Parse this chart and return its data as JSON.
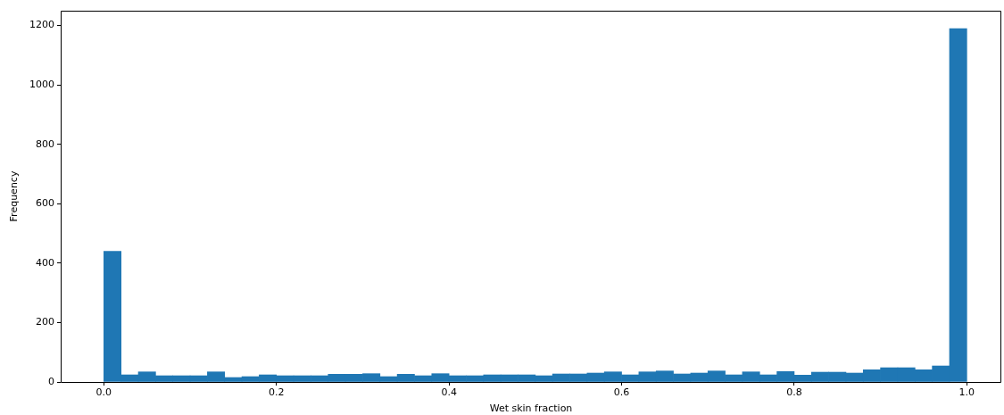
{
  "chart_data": {
    "type": "histogram",
    "xlabel": "Wet skin fraction",
    "ylabel": "Frequency",
    "bins": [
      0,
      0.02,
      0.04,
      0.06,
      0.08,
      0.1,
      0.12,
      0.14,
      0.16,
      0.18,
      0.2,
      0.22,
      0.24,
      0.26,
      0.28,
      0.3,
      0.32,
      0.34,
      0.36,
      0.38,
      0.4,
      0.42,
      0.44,
      0.46,
      0.48,
      0.5,
      0.52,
      0.54,
      0.56,
      0.58,
      0.6,
      0.62,
      0.64,
      0.66,
      0.68,
      0.7,
      0.72,
      0.74,
      0.76,
      0.78,
      0.8,
      0.82,
      0.84,
      0.86,
      0.88,
      0.9,
      0.92,
      0.94,
      0.96,
      0.98,
      1
    ],
    "values": [
      440,
      24,
      34,
      21,
      21,
      21,
      34,
      15,
      18,
      24,
      21,
      21,
      21,
      26,
      26,
      28,
      18,
      26,
      21,
      28,
      21,
      21,
      24,
      24,
      24,
      21,
      27,
      27,
      30,
      34,
      24,
      34,
      37,
      27,
      30,
      37,
      24,
      34,
      24,
      35,
      23,
      33,
      33,
      30,
      41,
      48,
      48,
      41,
      54,
      1190
    ],
    "color": "#1f77b4",
    "xlim": [
      -0.05,
      1.04
    ],
    "xticks": [
      {
        "value": 0,
        "label": "0.0"
      },
      0.2,
      0.4,
      0.6,
      0.8,
      {
        "value": 1,
        "label": "1.0"
      }
    ],
    "ylim": [
      0,
      1250
    ],
    "yticks": [
      0,
      200,
      400,
      600,
      800,
      1000,
      1200
    ]
  }
}
